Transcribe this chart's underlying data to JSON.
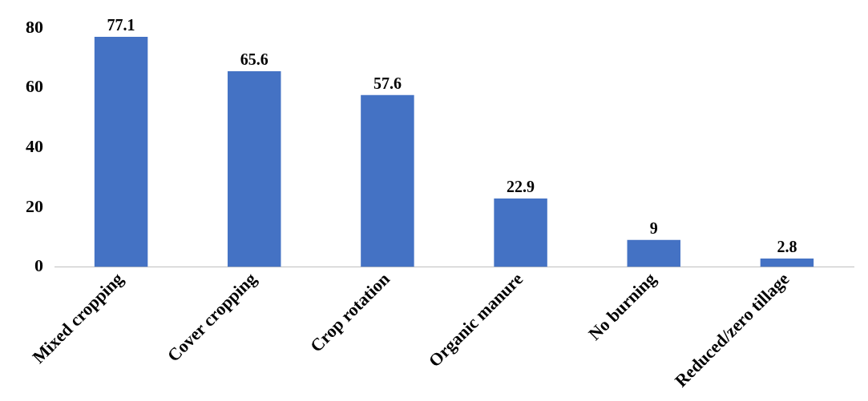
{
  "chart_data": {
    "type": "bar",
    "categories": [
      "Mixed cropping",
      "Cover cropping",
      "Crop rotation",
      "Organic manure",
      "No burning",
      "Reduced/zero tillage"
    ],
    "values": [
      77.1,
      65.6,
      57.6,
      22.9,
      9,
      2.8
    ],
    "color": "#4472c4",
    "ylim": [
      0,
      80
    ],
    "yticks": [
      0,
      20,
      40,
      60,
      80
    ],
    "grid": false,
    "legend": false,
    "data_labels": true
  }
}
